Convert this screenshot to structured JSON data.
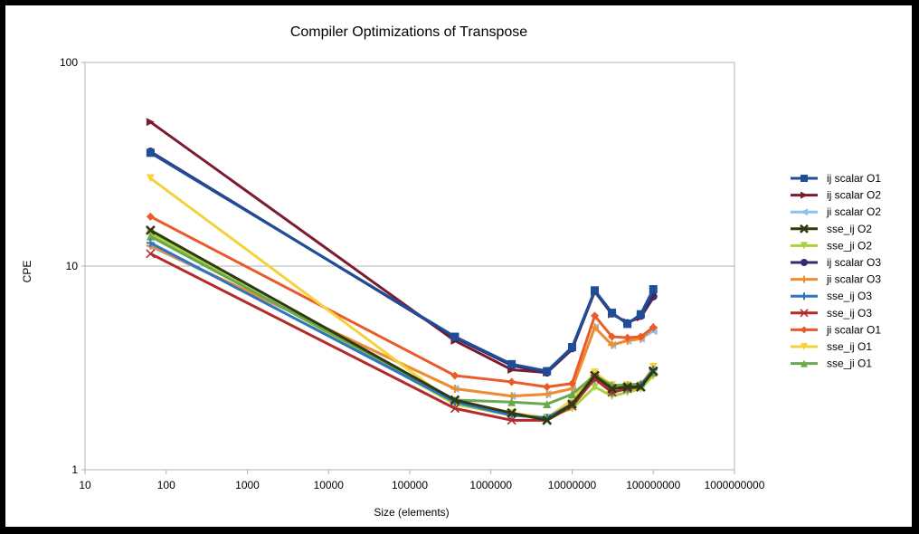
{
  "chart_data": {
    "type": "line",
    "title": "Compiler Optimizations of Transpose",
    "xlabel": "Size (elements)",
    "ylabel": "CPE",
    "x_scale": "log",
    "y_scale": "log",
    "xlim": [
      10,
      1000000000
    ],
    "ylim": [
      1,
      100
    ],
    "x_ticks": [
      "10",
      "100",
      "1000",
      "10000",
      "100000",
      "1000000",
      "10000000",
      "100000000",
      "1000000000"
    ],
    "y_ticks": [
      "1",
      "10",
      "100"
    ],
    "grid": "horizontal major gridlines",
    "legend_position": "right",
    "x": [
      64,
      360000,
      1800000,
      4900000,
      10000000,
      19000000,
      31000000,
      48000000,
      70000000,
      100000000
    ],
    "series": [
      {
        "name": "ij scalar O1",
        "color": "#1f4e99",
        "marker": "square",
        "values": [
          36,
          4.5,
          3.3,
          3.05,
          4.0,
          7.6,
          5.9,
          5.2,
          5.8,
          7.7
        ]
      },
      {
        "name": "ij scalar O2",
        "color": "#7b1c2e",
        "marker": "triangle-right",
        "values": [
          51,
          4.3,
          3.1,
          3.0,
          3.9,
          7.5,
          5.8,
          5.3,
          5.6,
          7.0
        ]
      },
      {
        "name": "ji scalar O2",
        "color": "#8ec0ea",
        "marker": "triangle-left",
        "values": [
          12.5,
          2.5,
          2.3,
          2.35,
          2.5,
          5.0,
          4.1,
          4.3,
          4.4,
          4.8
        ]
      },
      {
        "name": "sse_ij O2",
        "color": "#2f3a10",
        "marker": "x-bold",
        "values": [
          15,
          2.2,
          1.9,
          1.75,
          2.1,
          2.9,
          2.5,
          2.55,
          2.55,
          3.05
        ]
      },
      {
        "name": "sse_ji O2",
        "color": "#a8d23c",
        "marker": "triangle-down",
        "values": [
          14.5,
          2.1,
          1.85,
          1.8,
          2.0,
          2.55,
          2.3,
          2.4,
          2.5,
          2.9
        ]
      },
      {
        "name": "ij scalar O3",
        "color": "#3b2a6e",
        "marker": "circle",
        "values": [
          36.5,
          4.45,
          3.25,
          3.0,
          3.95,
          7.55,
          5.85,
          5.25,
          5.7,
          7.1
        ]
      },
      {
        "name": "ji scalar O3",
        "color": "#f08c2c",
        "marker": "plus",
        "values": [
          12.6,
          2.5,
          2.3,
          2.35,
          2.5,
          5.0,
          4.1,
          4.3,
          4.4,
          5.0
        ]
      },
      {
        "name": "sse_ij O3",
        "color": "#2f74c0",
        "marker": "plus",
        "values": [
          13,
          2.15,
          1.85,
          1.8,
          2.1,
          2.8,
          2.4,
          2.5,
          2.6,
          3.1
        ]
      },
      {
        "name": "sse_ij O3",
        "color": "#b52a2a",
        "marker": "x",
        "values": [
          11.5,
          2.0,
          1.75,
          1.75,
          2.05,
          2.8,
          2.4,
          2.5,
          2.55,
          3.05
        ]
      },
      {
        "name": "ji scalar O1",
        "color": "#ea5a2a",
        "marker": "diamond",
        "values": [
          17.5,
          2.9,
          2.7,
          2.55,
          2.65,
          5.7,
          4.5,
          4.45,
          4.5,
          5.0
        ]
      },
      {
        "name": "sse_ij O1",
        "color": "#f5d23c",
        "marker": "triangle-down",
        "values": [
          27,
          2.1,
          1.9,
          1.8,
          2.2,
          3.0,
          2.6,
          2.6,
          2.6,
          3.2
        ]
      },
      {
        "name": "sse_ji O1",
        "color": "#6aa84f",
        "marker": "triangle-up",
        "values": [
          14,
          2.2,
          2.15,
          2.1,
          2.35,
          2.9,
          2.6,
          2.6,
          2.65,
          3.0
        ]
      }
    ]
  }
}
